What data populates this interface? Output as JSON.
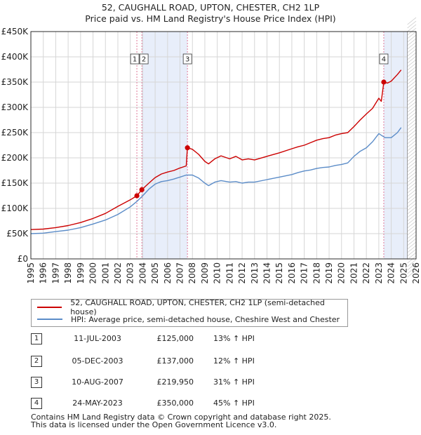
{
  "title_line1": "52, CAUGHALL ROAD, UPTON, CHESTER, CH2 1LP",
  "title_line2": "Price paid vs. HM Land Registry's House Price Index (HPI)",
  "colors": {
    "property": "#cc0000",
    "hpi": "#5b8cc8",
    "shade": "#e8eefa",
    "marker_line": "#e07a9a"
  },
  "legend": {
    "property_label": "52, CAUGHALL ROAD, UPTON, CHESTER, CH2 1LP (semi-detached house)",
    "hpi_label": "HPI: Average price, semi-detached house, Cheshire West and Chester"
  },
  "sales": [
    {
      "num": "1",
      "date": "11-JUL-2003",
      "price": "£125,000",
      "hpi": "13% ↑ HPI"
    },
    {
      "num": "2",
      "date": "05-DEC-2003",
      "price": "£137,000",
      "hpi": "12% ↑ HPI"
    },
    {
      "num": "3",
      "date": "10-AUG-2007",
      "price": "£219,950",
      "hpi": "31% ↑ HPI"
    },
    {
      "num": "4",
      "date": "24-MAY-2023",
      "price": "£350,000",
      "hpi": "45% ↑ HPI"
    }
  ],
  "footer_line1": "Contains HM Land Registry data © Crown copyright and database right 2025.",
  "footer_line2": "This data is licensed under the Open Government Licence v3.0.",
  "chart_data": {
    "type": "line",
    "xlim": [
      1995,
      2026
    ],
    "ylim": [
      0,
      450000
    ],
    "x_ticks": [
      1995,
      1996,
      1997,
      1998,
      1999,
      2000,
      2001,
      2002,
      2003,
      2004,
      2005,
      2006,
      2007,
      2008,
      2009,
      2010,
      2011,
      2012,
      2013,
      2014,
      2015,
      2016,
      2017,
      2018,
      2019,
      2020,
      2021,
      2022,
      2023,
      2024,
      2025,
      2026
    ],
    "y_ticks": [
      0,
      50000,
      100000,
      150000,
      200000,
      250000,
      300000,
      350000,
      400000,
      450000
    ],
    "y_tick_labels": [
      "£0",
      "£50K",
      "£100K",
      "£150K",
      "£200K",
      "£250K",
      "£300K",
      "£350K",
      "£400K",
      "£450K"
    ],
    "shaded_ranges": [
      [
        2003.93,
        2007.6
      ],
      [
        2023.4,
        2025.3
      ]
    ],
    "forecast_start": 2025.3,
    "sale_markers": [
      {
        "label": "1",
        "x": 2003.53,
        "y": 125000
      },
      {
        "label": "2",
        "x": 2003.93,
        "y": 137000
      },
      {
        "label": "3",
        "x": 2007.6,
        "y": 219950
      },
      {
        "label": "4",
        "x": 2023.4,
        "y": 350000
      }
    ],
    "series": [
      {
        "name": "52, CAUGHALL ROAD, UPTON, CHESTER, CH2 1LP (semi-detached house)",
        "x": [
          1995,
          1996,
          1997,
          1998,
          1999,
          2000,
          2001,
          2002,
          2003,
          2003.53,
          2003.93,
          2004.5,
          2005,
          2005.5,
          2006,
          2006.5,
          2007,
          2007.5,
          2007.6,
          2008,
          2008.5,
          2009,
          2009.3,
          2009.8,
          2010.3,
          2011,
          2011.5,
          2012,
          2012.5,
          2013,
          2014,
          2015,
          2016,
          2016.5,
          2017,
          2017.5,
          2018,
          2018.5,
          2019,
          2019.5,
          2020,
          2020.5,
          2021,
          2021.5,
          2022,
          2022.5,
          2023,
          2023.2,
          2023.4,
          2023.7,
          2024,
          2024.5,
          2024.8
        ],
        "values": [
          58000,
          59000,
          62000,
          66000,
          72000,
          80000,
          90000,
          104000,
          117000,
          125000,
          137000,
          150000,
          161000,
          168000,
          172000,
          175000,
          180000,
          184000,
          219950,
          217000,
          207000,
          193000,
          188000,
          198000,
          204000,
          198000,
          203000,
          196000,
          198000,
          196000,
          203000,
          210000,
          218000,
          222000,
          225000,
          230000,
          235000,
          238000,
          240000,
          245000,
          248000,
          250000,
          262000,
          275000,
          287000,
          298000,
          318000,
          312000,
          350000,
          348000,
          352000,
          365000,
          374000
        ]
      },
      {
        "name": "HPI: Average price, semi-detached house, Cheshire West and Chester",
        "x": [
          1995,
          1996,
          1997,
          1998,
          1999,
          2000,
          2001,
          2002,
          2003,
          2003.5,
          2004,
          2004.5,
          2005,
          2005.5,
          2006,
          2006.5,
          2007,
          2007.5,
          2008,
          2008.5,
          2009,
          2009.3,
          2009.8,
          2010.3,
          2011,
          2011.5,
          2012,
          2012.5,
          2013,
          2014,
          2015,
          2016,
          2016.5,
          2017,
          2017.5,
          2018,
          2018.5,
          2019,
          2019.5,
          2020,
          2020.5,
          2021,
          2021.5,
          2022,
          2022.5,
          2023,
          2023.5,
          2024,
          2024.5,
          2024.8
        ],
        "values": [
          50000,
          51000,
          54000,
          57000,
          62000,
          69000,
          77000,
          88000,
          103000,
          113000,
          125000,
          138000,
          148000,
          153000,
          155000,
          158000,
          162000,
          166000,
          166000,
          160000,
          150000,
          145000,
          152000,
          155000,
          152000,
          153000,
          150000,
          152000,
          152000,
          157000,
          162000,
          167000,
          171000,
          174000,
          176000,
          179000,
          181000,
          182000,
          185000,
          187000,
          190000,
          203000,
          213000,
          220000,
          232000,
          248000,
          240000,
          240000,
          250000,
          260000
        ]
      }
    ]
  }
}
